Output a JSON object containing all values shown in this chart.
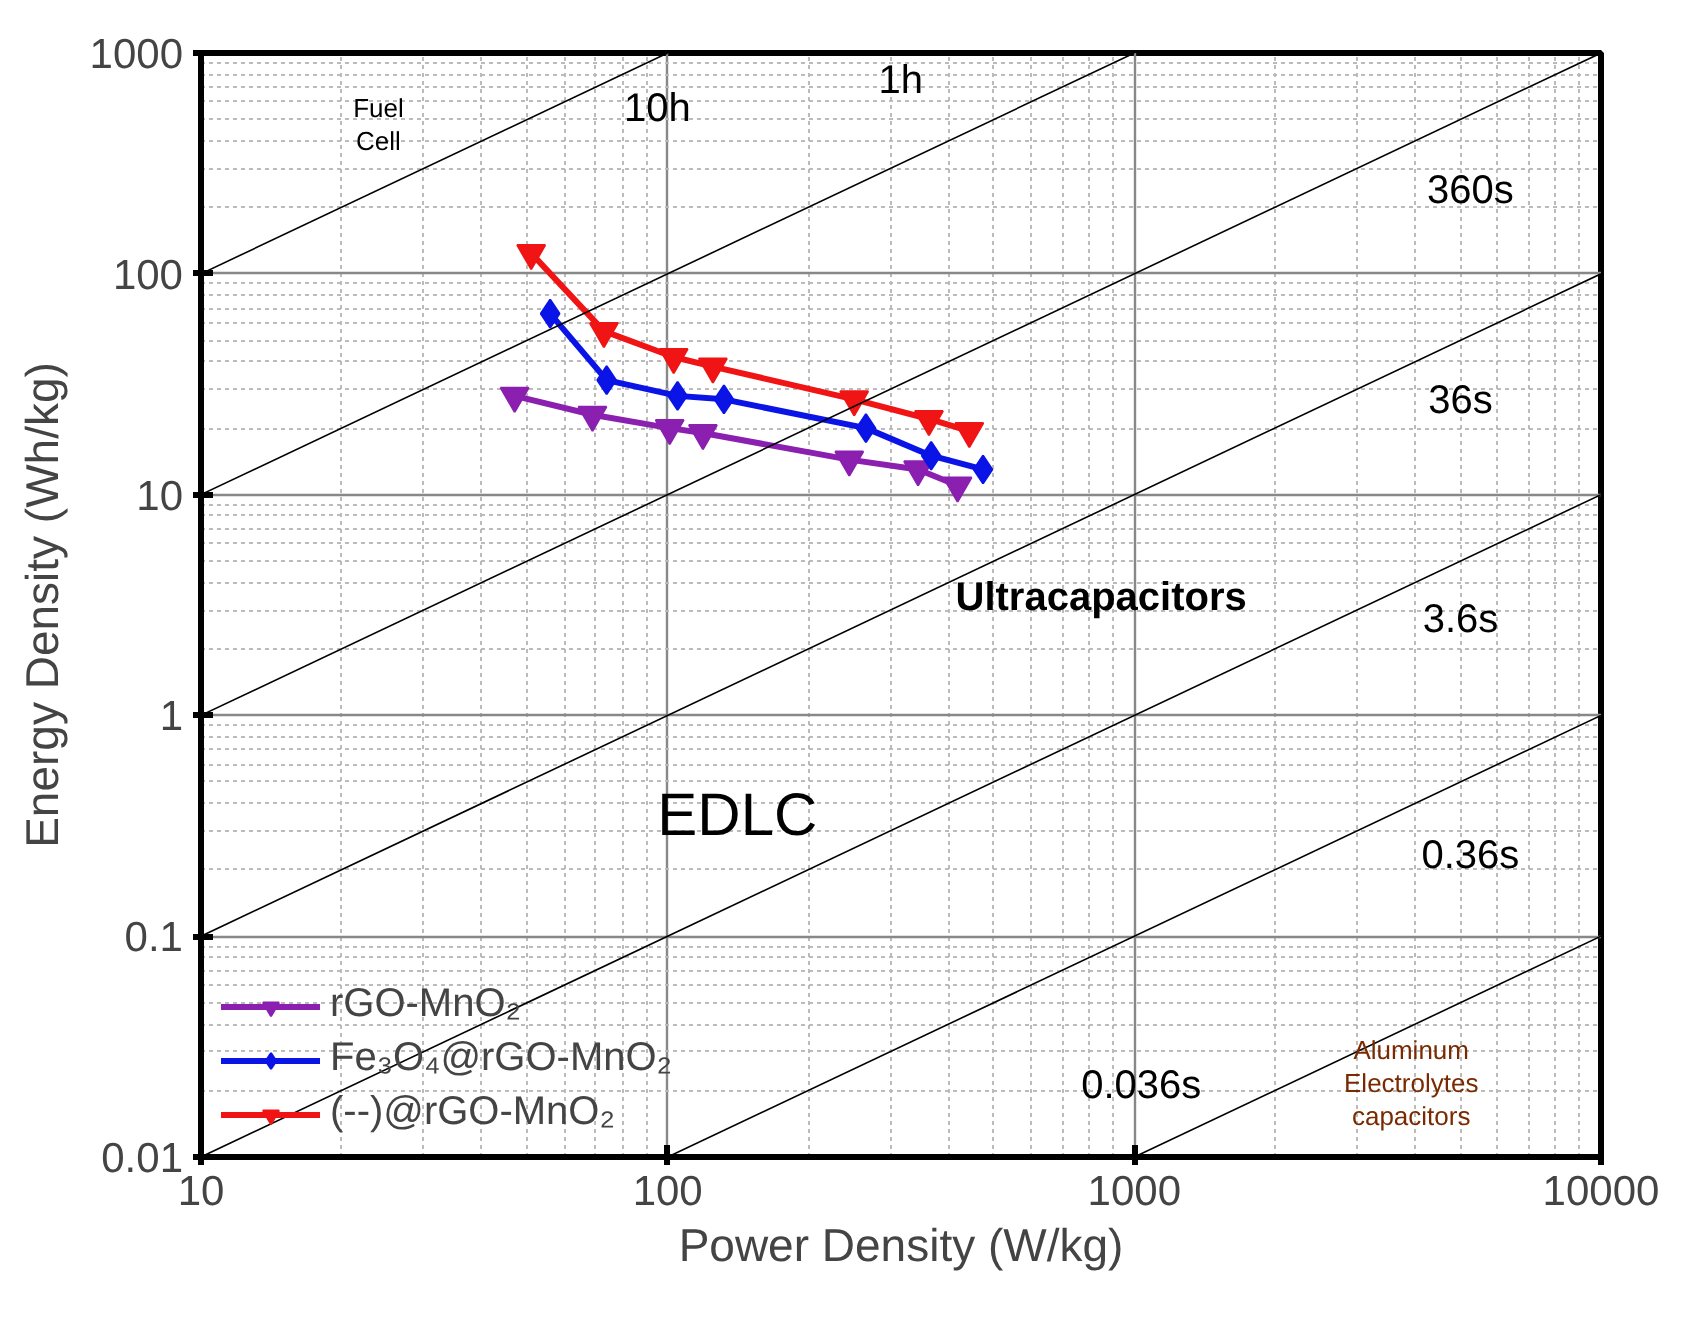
{
  "chart_data": {
    "type": "line",
    "xlabel": "Power Density (W/kg)",
    "ylabel": "Energy Density (Wh/kg)",
    "log": "xy",
    "xlim": [
      10,
      10000
    ],
    "ylim": [
      0.01,
      1000
    ],
    "xticks": [
      10,
      100,
      1000,
      10000
    ],
    "yticks": [
      0.01,
      0.1,
      1,
      10,
      100,
      1000
    ],
    "grid": true,
    "legend": "bottom left",
    "line_style": "solid",
    "series": [
      {
        "name": "rGO-MnO₂",
        "color": "#8a1fb0",
        "marker": "triangle",
        "x": [
          47,
          69,
          101,
          119,
          245,
          344,
          418
        ],
        "values": [
          28,
          23,
          20,
          19,
          14.4,
          13,
          11
        ]
      },
      {
        "name": "Fe₃O₄@rGO-MnO₂",
        "color": "#0a14e6",
        "marker": "diamond",
        "x": [
          56,
          74,
          105,
          132,
          266,
          367,
          474
        ],
        "values": [
          66,
          33,
          28,
          27,
          20,
          15,
          13
        ]
      },
      {
        "name": "(--)@rGO-MnO₂",
        "color": "#f01414",
        "marker": "triangle",
        "x": [
          51,
          73,
          103,
          125,
          251,
          363,
          443
        ],
        "values": [
          124,
          55,
          42,
          38,
          27,
          22,
          19.4
        ]
      },
      {
        "color": "#000000",
        "marker": "none",
        "x": [
          10,
          100
        ],
        "values": [
          100,
          1000
        ]
      },
      {
        "color": "#000000",
        "marker": "none",
        "x": [
          10,
          1000
        ],
        "values": [
          10,
          1000
        ]
      },
      {
        "color": "#000000",
        "marker": "none",
        "x": [
          10,
          10000
        ],
        "values": [
          1,
          1000
        ]
      },
      {
        "color": "#000000",
        "marker": "none",
        "x": [
          10,
          10000
        ],
        "values": [
          0.1,
          100
        ]
      },
      {
        "color": "#000000",
        "marker": "none",
        "x": [
          10,
          10000
        ],
        "values": [
          0.01,
          10
        ]
      },
      {
        "color": "#000000",
        "marker": "none",
        "x": [
          100,
          10000
        ],
        "values": [
          0.01,
          1
        ]
      },
      {
        "color": "#000000",
        "marker": "none",
        "x": [
          1000,
          10000
        ],
        "values": [
          0.01,
          0.1
        ]
      }
    ],
    "annotations": [
      "Fuel\nCell",
      "Ultracapacitors",
      "EDLC",
      "Aluminum\nElectrolytes\ncapacitors",
      "10h",
      "1h",
      "360s",
      "36s",
      "3.6s",
      "0.36s",
      "0.036s"
    ]
  }
}
